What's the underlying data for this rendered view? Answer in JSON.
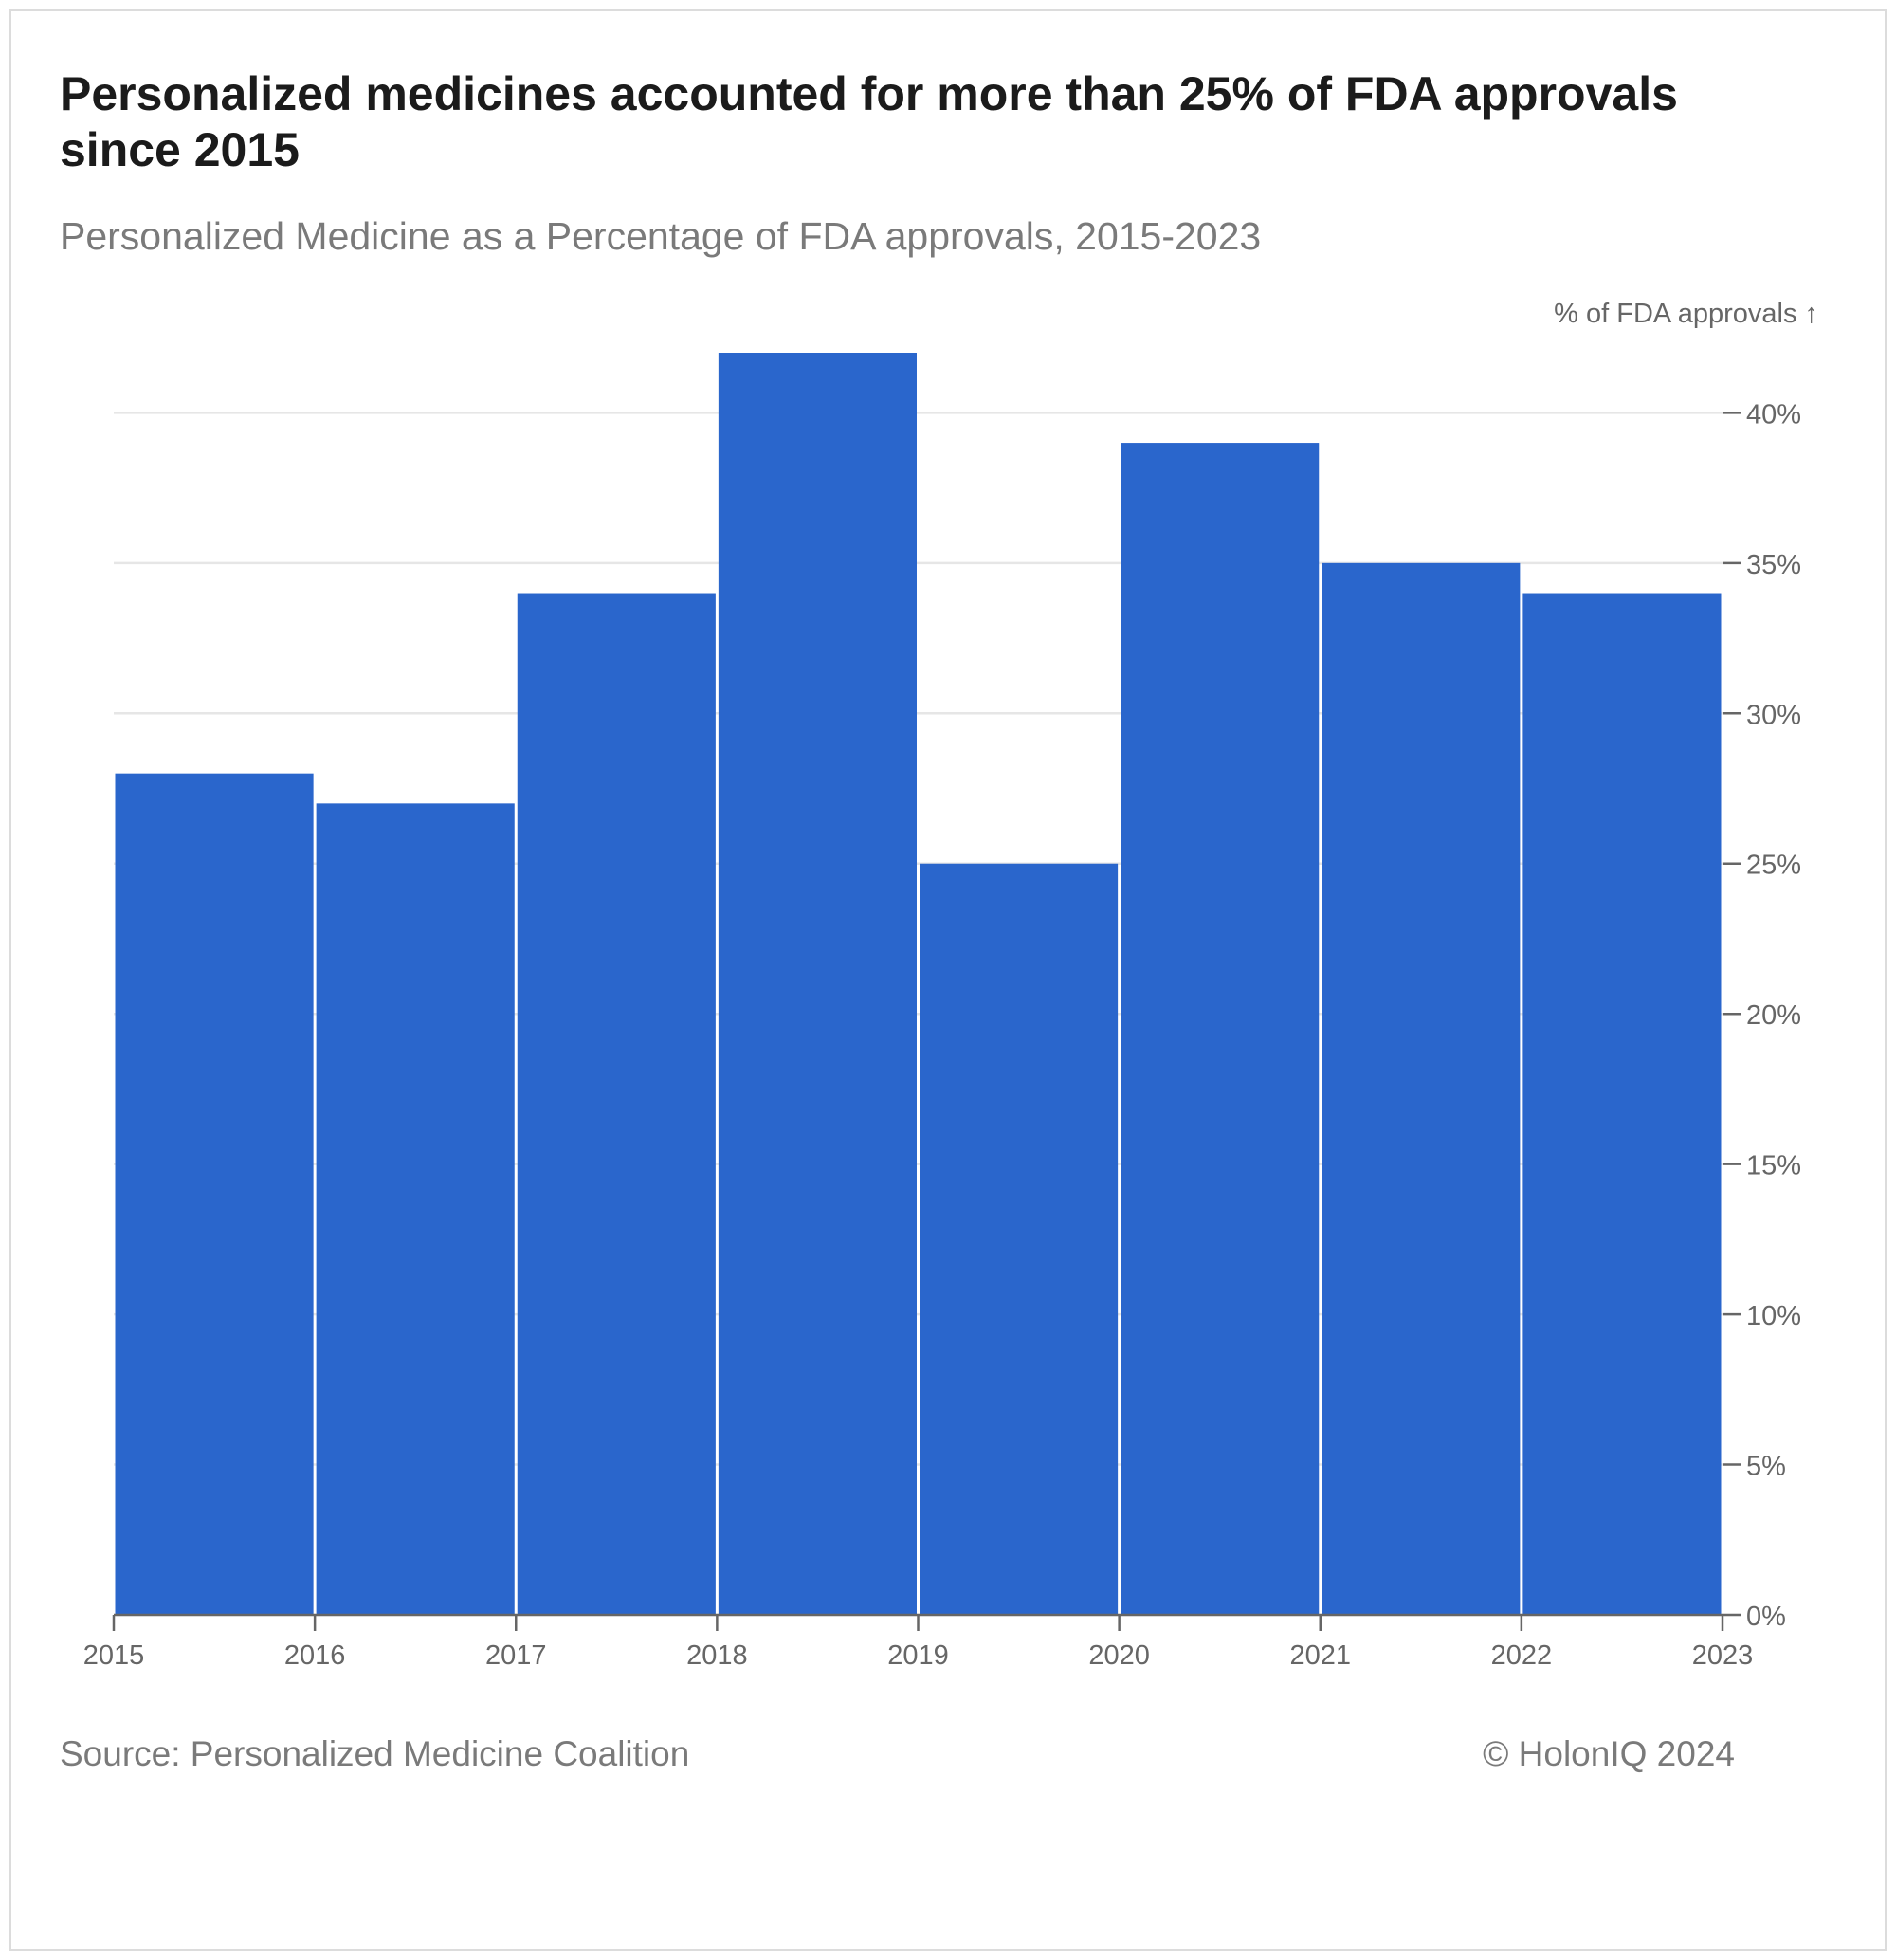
{
  "title": "Personalized medicines accounted for more than 25% of FDA approvals since 2015",
  "subtitle": "Personalized Medicine as a Percentage of FDA approvals, 2015-2023",
  "footer": {
    "source": "Source: Personalized Medicine Coalition",
    "copyright": "© HolonIQ 2024"
  },
  "colors": {
    "bar": "#2a66cc",
    "grid": "#e6e6e6",
    "axis": "#666666",
    "label": "#666666"
  },
  "chart_data": {
    "type": "bar",
    "title": "Personalized medicines accounted for more than 25% of FDA approvals since 2015",
    "subtitle": "Personalized Medicine as a Percentage of FDA approvals, 2015-2023",
    "ylabel": "% of FDA approvals ↑",
    "xlabel": "",
    "x_ticks": [
      2015,
      2016,
      2017,
      2018,
      2019,
      2020,
      2021,
      2022,
      2023
    ],
    "bins": [
      {
        "start": 2015,
        "end": 2016,
        "value": 28
      },
      {
        "start": 2016,
        "end": 2017,
        "value": 27
      },
      {
        "start": 2017,
        "end": 2018,
        "value": 34
      },
      {
        "start": 2018,
        "end": 2019,
        "value": 42
      },
      {
        "start": 2019,
        "end": 2020,
        "value": 25
      },
      {
        "start": 2020,
        "end": 2021,
        "value": 39
      },
      {
        "start": 2021,
        "end": 2022,
        "value": 35
      },
      {
        "start": 2022,
        "end": 2023,
        "value": 34
      }
    ],
    "y_ticks": [
      0,
      5,
      10,
      15,
      20,
      25,
      30,
      35,
      40
    ],
    "y_tick_suffix": "%",
    "ylim": [
      0,
      42
    ],
    "xlim": [
      2015,
      2023
    ],
    "y_axis_position": "right",
    "grid": true
  }
}
